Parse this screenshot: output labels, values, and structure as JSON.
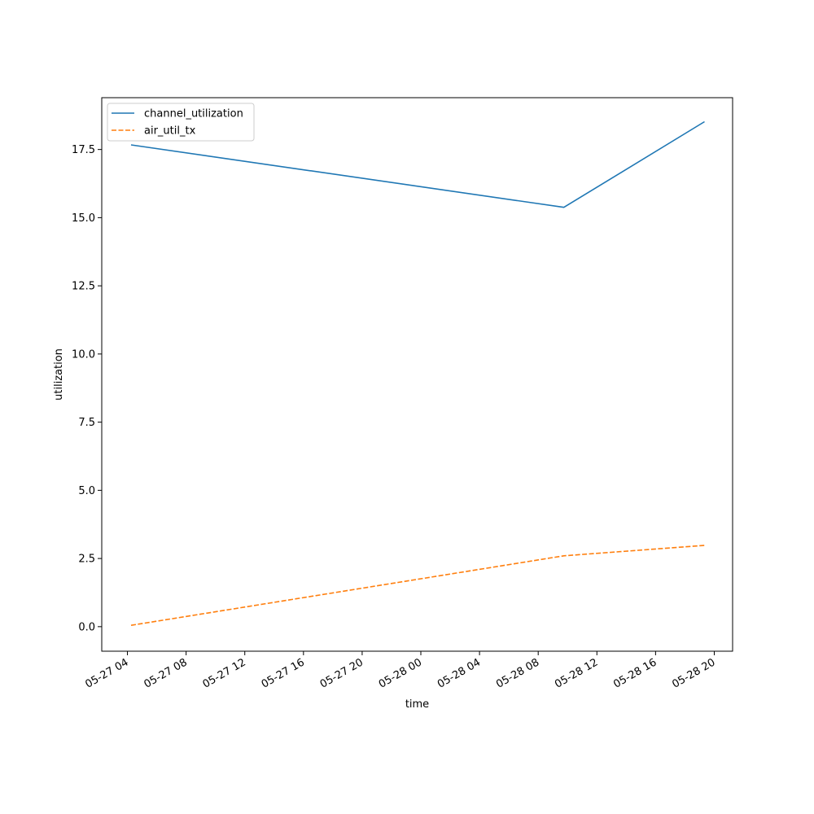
{
  "chart_data": {
    "type": "line",
    "title": "",
    "xlabel": "time",
    "ylabel": "utilization",
    "x_type": "datetime",
    "x": [
      "05-27 04:15",
      "05-28 09:45",
      "05-28 19:20"
    ],
    "xlim": [
      "05-27 02:15",
      "05-28 21:15"
    ],
    "xticks": [
      "05-27 04",
      "05-27 08",
      "05-27 12",
      "05-27 16",
      "05-27 20",
      "05-28 00",
      "05-28 04",
      "05-28 08",
      "05-28 12",
      "05-28 16",
      "05-28 20"
    ],
    "ylim": [
      -0.9,
      19.4
    ],
    "yticks": [
      "0.0",
      "2.5",
      "5.0",
      "7.5",
      "10.0",
      "12.5",
      "15.0",
      "17.5"
    ],
    "grid": false,
    "legend_position": "top-left",
    "series": [
      {
        "name": "channel_utilization",
        "values": [
          17.67,
          15.38,
          18.52
        ],
        "color": "#1f77b4",
        "style": "solid"
      },
      {
        "name": "air_util_tx",
        "values": [
          0.05,
          2.6,
          2.98
        ],
        "color": "#ff7f0e",
        "style": "dashed"
      }
    ]
  }
}
